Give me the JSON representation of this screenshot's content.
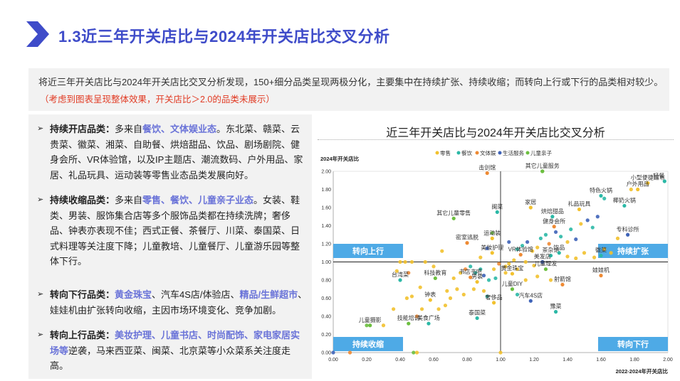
{
  "title": "1.3近三年开关店比与2024年开关店比交叉分析",
  "summary": {
    "text": "将近三年开关店比与2024年开关店比交叉分析发现，150+细分品类呈现两极分化，主要集中在持续扩张、持续收缩；而转向上行或下行的品类相对较少。",
    "note": "（考虑到图表呈现整体效果，开关店比＞2.0的品类未展示）"
  },
  "bullets": [
    {
      "marker": "➢",
      "segments": [
        {
          "t": "持续开店品类：",
          "s": "head"
        },
        {
          "t": "多来自",
          "s": ""
        },
        {
          "t": "餐饮、文体娱业态",
          "s": "hl"
        },
        {
          "t": "。东北菜、赣菜、云贵菜、徽菜、湘菜、自助餐、烘焙甜品、饮品、剧场剧院、健身会所、VR体验馆，以及IP主题店、潮流数码、户外用品、家居、礼品玩具、运动装等零售业态品类发展向好。",
          "s": ""
        }
      ]
    },
    {
      "marker": "➢",
      "segments": [
        {
          "t": "持续收缩品类：",
          "s": "head"
        },
        {
          "t": "多来自",
          "s": ""
        },
        {
          "t": "零售、餐饮、儿童亲子业态",
          "s": "hl"
        },
        {
          "t": "。女装、鞋类、男装、服饰集合店等多个服饰品类都在持续洗牌；奢侈品、钟表亦表现不佳；西式正餐、茶餐厅、川菜、泰国菜、日式料理等关注度下降；儿童教培、儿童餐厅、儿童游乐园等整体下行。",
          "s": ""
        }
      ]
    },
    {
      "marker": "➢",
      "segments": [
        {
          "t": "转向下行品类：",
          "s": "head"
        },
        {
          "t": "黄金珠宝",
          "s": "hl"
        },
        {
          "t": "、汽车4S店/体验店、",
          "s": ""
        },
        {
          "t": "精品/生鲜超市",
          "s": "hl"
        },
        {
          "t": "、娃娃机由扩张转向收缩，主因市场环境变化、竞争加剧。",
          "s": ""
        }
      ]
    },
    {
      "marker": "➢",
      "segments": [
        {
          "t": "转向上行品类：",
          "s": "head"
        },
        {
          "t": "美妆护理、儿童书店、时尚配饰、家电家居实场等",
          "s": "hl"
        },
        {
          "t": "逆袭，马来西亚菜、闽菜、北京菜等小众菜系关注度走高。",
          "s": ""
        }
      ]
    }
  ],
  "chart_data": {
    "type": "scatter",
    "title": "近三年开关店比与2024年开关店比交叉分析",
    "xlabel": "2022-2024年开关店比",
    "ylabel": "2024年开关店比",
    "xlim": [
      0,
      2
    ],
    "ylim": [
      0,
      2
    ],
    "xticks": [
      "0.00",
      "0.20",
      "0.40",
      "0.60",
      "0.80",
      "1.00",
      "1.20",
      "1.40",
      "1.60",
      "1.80",
      "2.00"
    ],
    "yticks": [
      "0.00",
      "0.20",
      "0.40",
      "0.60",
      "0.80",
      "1.00",
      "1.20",
      "1.40",
      "1.60",
      "1.80",
      "2.00"
    ],
    "legend": {
      "position": "top",
      "items": [
        {
          "name": "零售",
          "color": "#f2c12e"
        },
        {
          "name": "餐饮",
          "color": "#2bb8a6"
        },
        {
          "name": "文体娱",
          "color": "#ee8a34"
        },
        {
          "name": "生活服务",
          "color": "#3e63b8"
        },
        {
          "name": "儿童亲子",
          "color": "#6cbf3f"
        }
      ]
    },
    "quadrants": [
      {
        "label": "转向上行",
        "position": "top-left"
      },
      {
        "label": "持续扩张",
        "position": "top-right"
      },
      {
        "label": "持续收缩",
        "position": "bottom-left"
      },
      {
        "label": "转向下行",
        "position": "bottom-right"
      }
    ],
    "colors": {
      "零售": "#f2c12e",
      "餐饮": "#2bb8a6",
      "文体娱": "#ee8a34",
      "生活服务": "#3e63b8",
      "儿童亲子": "#6cbf3f"
    },
    "labeled_points": [
      {
        "name": "击剑馆",
        "x": 0.92,
        "y": 1.98,
        "cat": "文体娱"
      },
      {
        "name": "其它儿童服务",
        "x": 1.25,
        "y": 2.0,
        "cat": "儿童亲子"
      },
      {
        "name": "轻餐",
        "x": 1.98,
        "y": 1.89,
        "cat": "餐饮"
      },
      {
        "name": "小型便捷超市",
        "x": 1.88,
        "y": 1.87,
        "cat": "零售"
      },
      {
        "name": "户外用品",
        "x": 1.82,
        "y": 1.8,
        "cat": "零售"
      },
      {
        "name": "特色火锅",
        "x": 1.6,
        "y": 1.73,
        "cat": "餐饮"
      },
      {
        "name": "家居",
        "x": 1.18,
        "y": 1.6,
        "cat": "零售"
      },
      {
        "name": "礼品玩具",
        "x": 1.47,
        "y": 1.58,
        "cat": "零售"
      },
      {
        "name": "椰奶火锅",
        "x": 1.74,
        "y": 1.62,
        "cat": "餐饮"
      },
      {
        "name": "闽菜",
        "x": 0.98,
        "y": 1.55,
        "cat": "餐饮"
      },
      {
        "name": "烘焙甜品",
        "x": 1.31,
        "y": 1.5,
        "cat": "餐饮"
      },
      {
        "name": "其它儿童零售",
        "x": 0.72,
        "y": 1.48,
        "cat": "儿童亲子"
      },
      {
        "name": "健身会所",
        "x": 1.32,
        "y": 1.39,
        "cat": "文体娱"
      },
      {
        "name": "专科诊所",
        "x": 1.76,
        "y": 1.3,
        "cat": "生活服务"
      },
      {
        "name": "密室逃脱",
        "x": 0.8,
        "y": 1.21,
        "cat": "文体娱"
      },
      {
        "name": "运动装",
        "x": 0.95,
        "y": 1.26,
        "cat": "零售"
      },
      {
        "name": "美妆护理",
        "x": 0.95,
        "y": 1.1,
        "cat": "零售"
      },
      {
        "name": "VR体验馆",
        "x": 1.12,
        "y": 1.08,
        "cat": "文体娱"
      },
      {
        "name": "茶杂馆",
        "x": 1.3,
        "y": 1.07,
        "cat": "餐饮"
      },
      {
        "name": "饮品",
        "x": 1.35,
        "y": 1.1,
        "cat": "餐饮"
      },
      {
        "name": "徽菜",
        "x": 1.6,
        "y": 1.07,
        "cat": "餐饮"
      },
      {
        "name": "美发店",
        "x": 1.25,
        "y": 1.0,
        "cat": "生活服务"
      },
      {
        "name": "儿童理发",
        "x": 1.27,
        "y": 0.92,
        "cat": "儿童亲子"
      },
      {
        "name": "书店书吧",
        "x": 0.82,
        "y": 0.83,
        "cat": "文体娱"
      },
      {
        "name": "男装",
        "x": 0.86,
        "y": 0.78,
        "cat": "零售"
      },
      {
        "name": "黄金珠宝",
        "x": 1.07,
        "y": 0.87,
        "cat": "零售"
      },
      {
        "name": "娃娃机",
        "x": 1.6,
        "y": 0.85,
        "cat": "文体娱"
      },
      {
        "name": "台湾菜",
        "x": 0.4,
        "y": 0.8,
        "cat": "餐饮"
      },
      {
        "name": "科技教育",
        "x": 0.61,
        "y": 0.82,
        "cat": "儿童亲子"
      },
      {
        "name": "射箭馆",
        "x": 1.37,
        "y": 0.75,
        "cat": "文体娱"
      },
      {
        "name": "儿童DIY",
        "x": 1.07,
        "y": 0.7,
        "cat": "儿童亲子"
      },
      {
        "name": "钟表",
        "x": 0.58,
        "y": 0.58,
        "cat": "零售"
      },
      {
        "name": "奢侈品",
        "x": 0.96,
        "y": 0.55,
        "cat": "零售"
      },
      {
        "name": "汽车4S店",
        "x": 1.18,
        "y": 0.57,
        "cat": "生活服务"
      },
      {
        "name": "豫菜",
        "x": 1.33,
        "y": 0.45,
        "cat": "餐饮"
      },
      {
        "name": "儿童摄影",
        "x": 0.22,
        "y": 0.3,
        "cat": "儿童亲子"
      },
      {
        "name": "技能培训",
        "x": 0.45,
        "y": 0.32,
        "cat": "儿童亲子"
      },
      {
        "name": "美食广场",
        "x": 0.57,
        "y": 0.32,
        "cat": "餐饮"
      },
      {
        "name": "泰国菜",
        "x": 0.86,
        "y": 0.38,
        "cat": "餐饮"
      }
    ],
    "other_points": [
      {
        "x": 0.4,
        "y": 1.0,
        "cat": "零售"
      },
      {
        "x": 0.43,
        "y": 1.0,
        "cat": "零售"
      },
      {
        "x": 0.47,
        "y": 1.0,
        "cat": "零售"
      },
      {
        "x": 0.38,
        "y": 0.9,
        "cat": "零售"
      },
      {
        "x": 0.45,
        "y": 0.88,
        "cat": "文体娱"
      },
      {
        "x": 0.52,
        "y": 0.72,
        "cat": "零售"
      },
      {
        "x": 0.47,
        "y": 0.62,
        "cat": "零售"
      },
      {
        "x": 0.44,
        "y": 0.6,
        "cat": "零售"
      },
      {
        "x": 0.53,
        "y": 0.48,
        "cat": "零售"
      },
      {
        "x": 0.36,
        "y": 0.48,
        "cat": "零售"
      },
      {
        "x": 0.3,
        "y": 0.3,
        "cat": "零售"
      },
      {
        "x": 0.2,
        "y": 0.3,
        "cat": "儿童亲子"
      },
      {
        "x": 0.5,
        "y": 0.4,
        "cat": "文体娱"
      },
      {
        "x": 0.63,
        "y": 0.48,
        "cat": "零售"
      },
      {
        "x": 0.67,
        "y": 0.52,
        "cat": "零售"
      },
      {
        "x": 0.7,
        "y": 0.6,
        "cat": "零售"
      },
      {
        "x": 0.68,
        "y": 0.68,
        "cat": "零售"
      },
      {
        "x": 0.74,
        "y": 0.7,
        "cat": "零售"
      },
      {
        "x": 0.78,
        "y": 0.64,
        "cat": "零售"
      },
      {
        "x": 0.72,
        "y": 0.82,
        "cat": "零售"
      },
      {
        "x": 0.76,
        "y": 0.88,
        "cat": "零售"
      },
      {
        "x": 0.79,
        "y": 0.92,
        "cat": "文体娱"
      },
      {
        "x": 0.82,
        "y": 0.95,
        "cat": "餐饮"
      },
      {
        "x": 0.85,
        "y": 0.88,
        "cat": "餐饮"
      },
      {
        "x": 0.88,
        "y": 0.92,
        "cat": "餐饮"
      },
      {
        "x": 0.9,
        "y": 0.85,
        "cat": "生活服务"
      },
      {
        "x": 0.93,
        "y": 0.8,
        "cat": "餐饮"
      },
      {
        "x": 0.97,
        "y": 0.82,
        "cat": "餐饮"
      },
      {
        "x": 0.84,
        "y": 0.7,
        "cat": "零售"
      },
      {
        "x": 0.9,
        "y": 0.68,
        "cat": "零售"
      },
      {
        "x": 0.92,
        "y": 0.62,
        "cat": "餐饮"
      },
      {
        "x": 0.96,
        "y": 0.92,
        "cat": "零售"
      },
      {
        "x": 0.99,
        "y": 0.98,
        "cat": "文体娱"
      },
      {
        "x": 1.03,
        "y": 0.95,
        "cat": "零售"
      },
      {
        "x": 1.05,
        "y": 0.98,
        "cat": "零售"
      },
      {
        "x": 1.08,
        "y": 1.02,
        "cat": "零售"
      },
      {
        "x": 1.1,
        "y": 1.14,
        "cat": "餐饮"
      },
      {
        "x": 1.13,
        "y": 1.18,
        "cat": "餐饮"
      },
      {
        "x": 1.16,
        "y": 1.22,
        "cat": "生活服务"
      },
      {
        "x": 1.19,
        "y": 1.12,
        "cat": "零售"
      },
      {
        "x": 1.22,
        "y": 1.16,
        "cat": "零售"
      },
      {
        "x": 1.24,
        "y": 1.26,
        "cat": "餐饮"
      },
      {
        "x": 1.27,
        "y": 1.3,
        "cat": "餐饮"
      },
      {
        "x": 1.29,
        "y": 1.2,
        "cat": "文体娱"
      },
      {
        "x": 1.33,
        "y": 1.33,
        "cat": "生活服务"
      },
      {
        "x": 1.36,
        "y": 1.28,
        "cat": "餐饮"
      },
      {
        "x": 1.4,
        "y": 1.22,
        "cat": "零售"
      },
      {
        "x": 1.42,
        "y": 1.36,
        "cat": "餐饮"
      },
      {
        "x": 1.45,
        "y": 1.25,
        "cat": "生活服务"
      },
      {
        "x": 1.48,
        "y": 1.42,
        "cat": "零售"
      },
      {
        "x": 1.52,
        "y": 1.46,
        "cat": "生活服务"
      },
      {
        "x": 1.55,
        "y": 1.38,
        "cat": "餐饮"
      },
      {
        "x": 1.58,
        "y": 1.5,
        "cat": "生活服务"
      },
      {
        "x": 1.62,
        "y": 1.14,
        "cat": "零售"
      },
      {
        "x": 1.56,
        "y": 1.05,
        "cat": "零售"
      },
      {
        "x": 1.5,
        "y": 1.1,
        "cat": "零售"
      },
      {
        "x": 1.45,
        "y": 1.04,
        "cat": "零售"
      },
      {
        "x": 1.4,
        "y": 1.06,
        "cat": "零售"
      },
      {
        "x": 1.15,
        "y": 1.0,
        "cat": "零售"
      },
      {
        "x": 1.2,
        "y": 0.96,
        "cat": "零售"
      },
      {
        "x": 1.1,
        "y": 0.92,
        "cat": "零售"
      },
      {
        "x": 1.03,
        "y": 0.88,
        "cat": "零售"
      },
      {
        "x": 1.15,
        "y": 0.8,
        "cat": "零售"
      },
      {
        "x": 1.22,
        "y": 0.84,
        "cat": "零售"
      },
      {
        "x": 1.3,
        "y": 0.8,
        "cat": "零售"
      },
      {
        "x": 1.1,
        "y": 0.64,
        "cat": "餐饮"
      },
      {
        "x": 1.0,
        "y": 0.0,
        "cat": "零售"
      },
      {
        "x": 0.48,
        "y": 0.0,
        "cat": "儿童亲子"
      },
      {
        "x": 0.5,
        "y": 0.0,
        "cat": "零售"
      },
      {
        "x": 0.1,
        "y": 0.0,
        "cat": "文体娱"
      },
      {
        "x": 0.0,
        "y": 0.0,
        "cat": "生活服务"
      },
      {
        "x": 0.55,
        "y": 1.0,
        "cat": "零售"
      },
      {
        "x": 1.25,
        "y": 2.0,
        "cat": "儿童亲子"
      },
      {
        "x": 0.6,
        "y": 0.95,
        "cat": "零售"
      },
      {
        "x": 0.95,
        "y": 1.32,
        "cat": "儿童亲子"
      },
      {
        "x": 1.05,
        "y": 1.22,
        "cat": "生活服务"
      },
      {
        "x": 1.62,
        "y": 1.7,
        "cat": "餐饮"
      },
      {
        "x": 1.78,
        "y": 1.8,
        "cat": "零售"
      },
      {
        "x": 1.7,
        "y": 1.26,
        "cat": "零售"
      },
      {
        "x": 1.66,
        "y": 1.1,
        "cat": "零售"
      },
      {
        "x": 0.65,
        "y": 1.12,
        "cat": "零售"
      },
      {
        "x": 0.88,
        "y": 1.05,
        "cat": "零售"
      },
      {
        "x": 0.92,
        "y": 1.15,
        "cat": "生活服务"
      }
    ]
  }
}
